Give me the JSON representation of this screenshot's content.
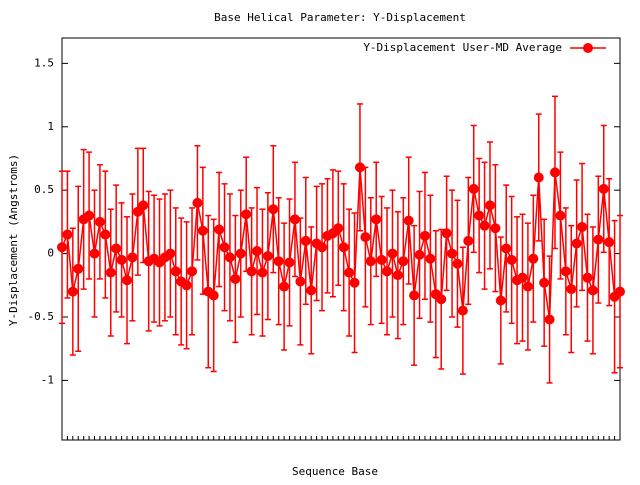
{
  "chart_data": {
    "type": "errorbar",
    "title": "Base  Helical Parameter: Y-Displacement",
    "x_label": "Sequence Base",
    "y_label": "Y-Displacement (Angstroms)",
    "legend": "upper right",
    "categories": [
      null,
      null,
      null,
      null,
      null,
      null,
      null,
      null,
      null,
      null,
      null,
      null,
      null,
      null,
      null,
      null,
      null,
      null,
      null,
      null,
      null,
      null,
      null,
      null,
      null,
      null,
      null,
      null,
      null,
      null,
      null,
      null,
      null,
      null,
      null,
      null,
      null,
      null,
      null,
      null,
      null,
      null,
      null,
      null,
      null,
      null,
      null,
      null,
      null,
      null,
      null,
      null,
      null,
      null,
      null,
      null,
      null,
      null,
      null,
      null,
      null,
      null,
      null,
      null,
      null,
      null,
      null,
      null,
      null,
      null,
      null,
      null,
      null,
      null,
      null,
      null,
      null,
      null,
      null,
      null,
      null,
      null,
      null,
      null,
      null,
      null,
      null,
      null,
      null,
      null,
      null,
      null,
      null,
      null,
      null,
      null,
      null,
      null,
      null,
      null,
      null,
      null,
      null,
      null
    ],
    "series": [
      {
        "name": "Y-Displacement User-MD Average",
        "color": "#ff0000",
        "values": [
          0.05,
          0.15,
          -0.3,
          -0.12,
          0.27,
          0.3,
          0.0,
          0.25,
          0.15,
          -0.15,
          0.04,
          -0.05,
          -0.21,
          -0.03,
          0.33,
          0.38,
          -0.06,
          -0.04,
          -0.07,
          -0.03,
          0.0,
          -0.14,
          -0.22,
          -0.25,
          -0.14,
          0.4,
          0.18,
          -0.3,
          -0.33,
          0.19,
          0.05,
          -0.03,
          -0.2,
          0.0,
          0.31,
          -0.14,
          0.02,
          -0.15,
          -0.02,
          0.35,
          -0.06,
          -0.26,
          -0.07,
          0.27,
          -0.22,
          0.1,
          -0.29,
          0.08,
          0.05,
          0.14,
          0.16,
          0.2,
          0.05,
          -0.15,
          -0.23,
          0.68,
          0.13,
          -0.06,
          0.27,
          -0.05,
          -0.14,
          0.0,
          -0.17,
          -0.06,
          0.26,
          -0.33,
          -0.01,
          0.14,
          -0.04,
          -0.32,
          -0.36,
          0.16,
          0.0,
          -0.08,
          -0.45,
          0.1,
          0.51,
          0.3,
          0.22,
          0.38,
          0.2,
          -0.37,
          0.04,
          -0.05,
          -0.21,
          -0.19,
          -0.26,
          -0.04,
          0.6,
          -0.23,
          -0.52,
          0.64,
          0.3,
          -0.14,
          -0.28,
          0.08,
          0.21,
          -0.19,
          -0.29,
          0.11,
          0.51,
          0.09,
          -0.34,
          -0.3
        ],
        "errors": [
          0.6,
          0.5,
          0.5,
          0.65,
          0.55,
          0.5,
          0.5,
          0.45,
          0.5,
          0.5,
          0.5,
          0.45,
          0.5,
          0.5,
          0.5,
          0.45,
          0.55,
          0.5,
          0.5,
          0.5,
          0.5,
          0.5,
          0.5,
          0.5,
          0.5,
          0.45,
          0.5,
          0.6,
          0.6,
          0.45,
          0.5,
          0.5,
          0.5,
          0.5,
          0.45,
          0.5,
          0.5,
          0.5,
          0.5,
          0.5,
          0.5,
          0.5,
          0.5,
          0.45,
          0.5,
          0.5,
          0.5,
          0.45,
          0.5,
          0.45,
          0.5,
          0.45,
          0.5,
          0.5,
          0.55,
          0.5,
          0.55,
          0.5,
          0.45,
          0.5,
          0.5,
          0.5,
          0.5,
          0.5,
          0.5,
          0.55,
          0.5,
          0.5,
          0.5,
          0.5,
          0.55,
          0.45,
          0.5,
          0.5,
          0.5,
          0.5,
          0.5,
          0.45,
          0.5,
          0.5,
          0.5,
          0.5,
          0.5,
          0.5,
          0.5,
          0.5,
          0.5,
          0.5,
          0.5,
          0.5,
          0.5,
          0.6,
          0.5,
          0.5,
          0.5,
          0.5,
          0.5,
          0.5,
          0.5,
          0.5,
          0.5,
          0.5,
          0.6,
          0.6
        ]
      }
    ],
    "ylim": [
      -1.47,
      1.7
    ],
    "yticks": [
      -1,
      -0.5,
      0,
      0.5,
      1,
      1.5
    ]
  }
}
